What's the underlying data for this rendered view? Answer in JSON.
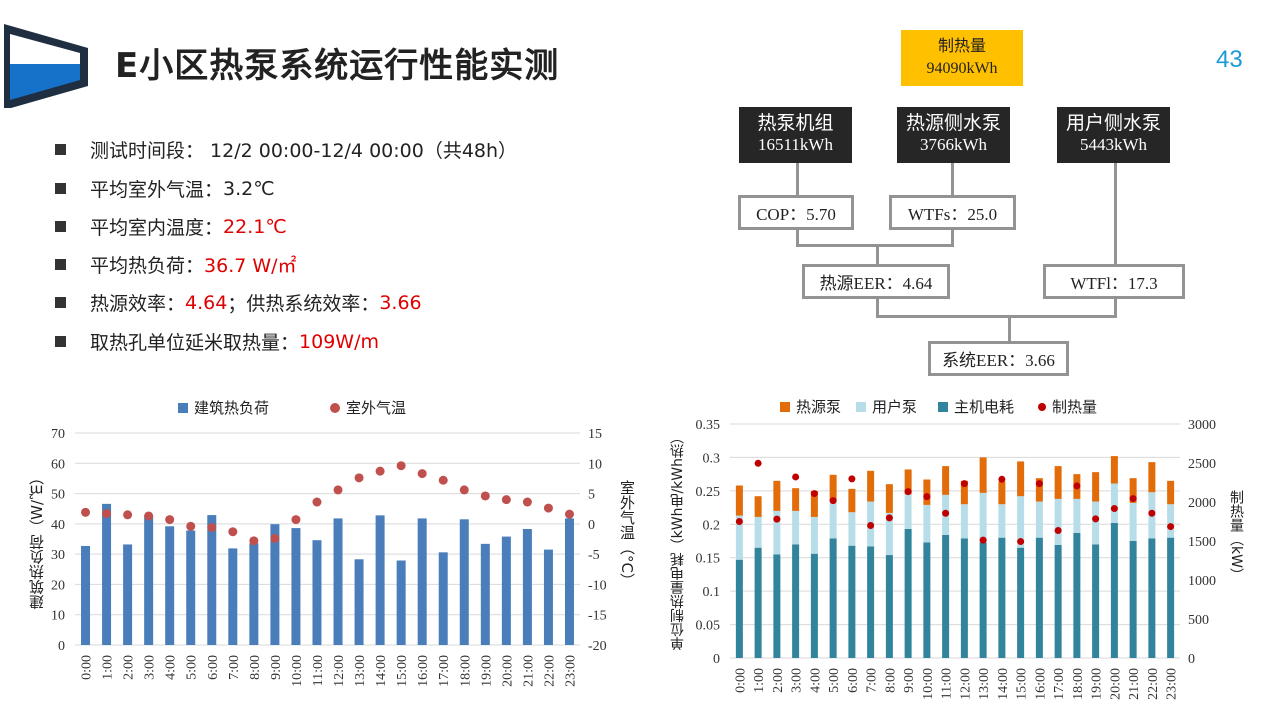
{
  "header": {
    "title": "E小区热泵系统运行性能实测",
    "page_number": "43"
  },
  "bullets": [
    {
      "label": "测试时间段： 12/2 00:00-12/4  00:00（共48h）",
      "value": ""
    },
    {
      "label": "平均室外气温：",
      "value": "3.2℃"
    },
    {
      "label": "平均室内温度：",
      "value": "22.1℃"
    },
    {
      "label": "平均热负荷：",
      "value": "36.7  W/㎡"
    },
    {
      "label": "热源效率：",
      "value": "4.64",
      "label2": "；供热系统效率：",
      "value2": "3.66"
    },
    {
      "label": "取热孔单位延米取热量：",
      "value": "109W/m"
    }
  ],
  "diagram": {
    "heat_output": {
      "label": "制热量",
      "value": "94090kWh"
    },
    "heat_pump": {
      "label": "热泵机组",
      "value": "16511kWh"
    },
    "source_pump": {
      "label": "热源侧水泵",
      "value": "3766kWh"
    },
    "user_pump": {
      "label": "用户侧水泵",
      "value": "5443kWh"
    },
    "cop": "COP：5.70",
    "wtfs": "WTFs：25.0",
    "source_eer": "热源EER：4.64",
    "wtfl": "WTFl：17.3",
    "system_eer": "系统EER：3.66"
  },
  "colors": {
    "bar_blue": "#4a7ebb",
    "temp_red": "#c0504d",
    "source_pump": "#e36c0a",
    "user_pump": "#b7dde8",
    "main": "#31849b",
    "heat_dot": "#c00000",
    "accent": "#ffc000"
  },
  "chart_data": [
    {
      "type": "bar",
      "title": "",
      "legend": [
        "建筑热负荷",
        "室外气温"
      ],
      "legend_position": "top",
      "categories": [
        "0:00",
        "1:00",
        "2:00",
        "3:00",
        "4:00",
        "5:00",
        "6:00",
        "7:00",
        "8:00",
        "9:00",
        "10:00",
        "11:00",
        "12:00",
        "13:00",
        "14:00",
        "15:00",
        "16:00",
        "17:00",
        "18:00",
        "19:00",
        "20:00",
        "21:00",
        "22:00",
        "23:00"
      ],
      "series": [
        {
          "name": "建筑热负荷",
          "type": "bar",
          "axis": "left",
          "values": [
            32.7,
            46.6,
            33.2,
            42.8,
            39.2,
            37.8,
            42.9,
            31.9,
            33.6,
            39.9,
            38.6,
            34.6,
            41.8,
            28.3,
            42.8,
            27.9,
            41.8,
            30.6,
            41.5,
            33.4,
            35.8,
            38.3,
            31.5,
            41.8
          ]
        },
        {
          "name": "室外气温",
          "type": "scatter",
          "axis": "right",
          "values": [
            1.9,
            1.7,
            1.5,
            1.3,
            0.7,
            -0.4,
            -0.6,
            -1.3,
            -2.8,
            -2.4,
            0.7,
            3.6,
            5.6,
            7.6,
            8.7,
            9.6,
            8.3,
            7.2,
            5.6,
            4.6,
            4.0,
            3.6,
            2.6,
            1.6
          ]
        }
      ],
      "ylabel": "建筑热负荷（W/㎡）",
      "y2label": "室外气温（°C）",
      "ylim": [
        0,
        70
      ],
      "y2lim": [
        -20,
        15
      ],
      "yticks": [
        "70",
        "60",
        "50",
        "40",
        "30",
        "20",
        "10",
        "0"
      ],
      "y2ticks": [
        "15",
        "10",
        "5",
        "0",
        "-5",
        "-10",
        "-15",
        "-20"
      ],
      "grid": true
    },
    {
      "type": "bar",
      "stacked": true,
      "title": "",
      "legend": [
        "热源泵",
        "用户泵",
        "主机电耗",
        "制热量"
      ],
      "legend_position": "top",
      "categories": [
        "0:00",
        "1:00",
        "2:00",
        "3:00",
        "4:00",
        "5:00",
        "6:00",
        "7:00",
        "8:00",
        "9:00",
        "10:00",
        "11:00",
        "12:00",
        "13:00",
        "14:00",
        "15:00",
        "16:00",
        "17:00",
        "18:00",
        "19:00",
        "20:00",
        "21:00",
        "22:00",
        "23:00"
      ],
      "series": [
        {
          "name": "主机电耗",
          "values": [
            0.147,
            0.165,
            0.155,
            0.17,
            0.156,
            0.179,
            0.168,
            0.167,
            0.154,
            0.193,
            0.173,
            0.184,
            0.179,
            0.173,
            0.18,
            0.165,
            0.18,
            0.169,
            0.187,
            0.17,
            0.202,
            0.175,
            0.179,
            0.18
          ]
        },
        {
          "name": "用户泵",
          "values": [
            0.066,
            0.046,
            0.065,
            0.05,
            0.055,
            0.056,
            0.05,
            0.067,
            0.063,
            0.052,
            0.056,
            0.06,
            0.051,
            0.074,
            0.05,
            0.077,
            0.054,
            0.069,
            0.051,
            0.064,
            0.059,
            0.057,
            0.069,
            0.05
          ]
        },
        {
          "name": "热源泵",
          "values": [
            0.045,
            0.031,
            0.045,
            0.034,
            0.039,
            0.039,
            0.035,
            0.046,
            0.043,
            0.037,
            0.038,
            0.043,
            0.035,
            0.053,
            0.034,
            0.052,
            0.035,
            0.049,
            0.037,
            0.044,
            0.041,
            0.037,
            0.045,
            0.035
          ]
        },
        {
          "name": "制热量",
          "type": "scatter",
          "axis": "right",
          "values": [
            1750,
            2496,
            1780,
            2321,
            2108,
            2018,
            2296,
            1699,
            1796,
            2133,
            2069,
            1856,
            2236,
            1511,
            2291,
            1493,
            2236,
            1634,
            2206,
            1784,
            1916,
            2044,
            1856,
            1685
          ]
        }
      ],
      "ylabel": "单位制热量电耗（kWh电/kWh热）",
      "y2label": "制热量（kW）",
      "ylim": [
        0,
        0.35
      ],
      "y2lim": [
        0,
        3000
      ],
      "yticks": [
        "0.35",
        "0.3",
        "0.25",
        "0.2",
        "0.15",
        "0.1",
        "0.05",
        "0"
      ],
      "y2ticks": [
        "3000",
        "2500",
        "2000",
        "1500",
        "1000",
        "500",
        "0"
      ],
      "grid": true
    }
  ]
}
